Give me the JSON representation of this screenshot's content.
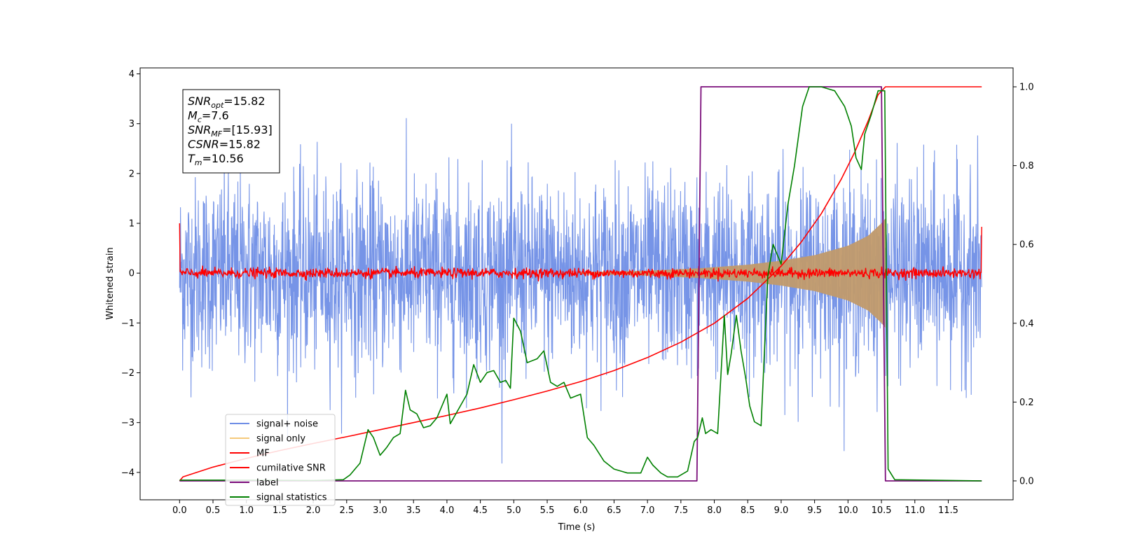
{
  "chart_data": {
    "type": "line",
    "xlabel": "Time (s)",
    "ylabel": "Whitened strain",
    "xlim": [
      -0.59,
      12.47
    ],
    "ylim": [
      -4.55,
      4.12
    ],
    "y2lim": [
      -0.048,
      1.048
    ],
    "grid": false,
    "xticks": [
      0.0,
      0.5,
      1.0,
      1.5,
      2.0,
      2.5,
      3.0,
      3.5,
      4.0,
      4.5,
      5.0,
      5.5,
      6.0,
      6.5,
      7.0,
      7.5,
      8.0,
      8.5,
      9.0,
      9.5,
      10.0,
      10.5,
      11.0,
      11.5
    ],
    "xtick_labels": [
      "0.0",
      "0.5",
      "1.0",
      "1.5",
      "2.0",
      "2.5",
      "3.0",
      "3.5",
      "4.0",
      "4.5",
      "5.0",
      "5.5",
      "6.0",
      "6.5",
      "7.0",
      "7.5",
      "8.0",
      "8.5",
      "9.0",
      "9.5",
      "10.0",
      "10.5",
      "11.0",
      "11.5"
    ],
    "yticks": [
      -4,
      -3,
      -2,
      -1,
      0,
      1,
      2,
      3,
      4
    ],
    "ytick_labels": [
      "−4",
      "−3",
      "−2",
      "−1",
      "0",
      "1",
      "2",
      "3",
      "4"
    ],
    "y2ticks": [
      0.0,
      0.2,
      0.4,
      0.6,
      0.8,
      1.0
    ],
    "y2tick_labels": [
      "0.0",
      "0.2",
      "0.4",
      "0.6",
      "0.8",
      "1.0"
    ],
    "legend": {
      "placement": "lower-left",
      "entries": [
        {
          "label": "signal+ noise",
          "color": "#6f8ee6"
        },
        {
          "label": "signal only",
          "color": "#f5c97a"
        },
        {
          "label": "MF",
          "color": "#ff0000"
        },
        {
          "label": "cumilative SNR",
          "color": "#ff0000"
        },
        {
          "label": "label",
          "color": "#7b0e7b"
        },
        {
          "label": "signal statistics",
          "color": "#008000"
        }
      ]
    },
    "annotation": {
      "lines": [
        {
          "base": "SNR",
          "sub": "opt",
          "value": "=15.82"
        },
        {
          "base": "M",
          "sub": "c",
          "value": "=7.6"
        },
        {
          "base": "SNR",
          "sub": "MF",
          "value": "=[15.93]"
        },
        {
          "base": "CSNR",
          "sub": "",
          "value": "=15.82"
        },
        {
          "base": "T",
          "sub": "m",
          "value": "=10.56"
        }
      ]
    },
    "series": [
      {
        "name": "signal+ noise",
        "axis": "left",
        "color": "#6f8ee6",
        "x_start": 0.0,
        "x_end": 12.0,
        "noise_rms": 0.95,
        "max": 3.65,
        "min": -4.15
      },
      {
        "name": "signal only",
        "axis": "left",
        "color": "#c19a6b",
        "envelope_x": [
          6.0,
          7.0,
          7.8,
          8.5,
          9.0,
          9.5,
          10.0,
          10.3,
          10.5,
          10.56
        ],
        "envelope_amp": [
          0.02,
          0.05,
          0.1,
          0.17,
          0.25,
          0.36,
          0.55,
          0.75,
          1.0,
          1.1
        ]
      },
      {
        "name": "MF",
        "axis": "left",
        "color": "#ff0000",
        "x_start": 0.0,
        "x_end": 12.0,
        "noise_rms": 0.05,
        "start_value": 1.0,
        "end_value": 0.93
      },
      {
        "name": "cumilative SNR",
        "axis": "right",
        "color": "#ff0000",
        "x": [
          0.0,
          0.05,
          0.5,
          1.0,
          1.5,
          2.0,
          2.5,
          3.0,
          3.5,
          4.0,
          4.5,
          5.0,
          5.5,
          6.0,
          6.5,
          7.0,
          7.5,
          8.0,
          8.5,
          9.0,
          9.3,
          9.6,
          9.9,
          10.1,
          10.3,
          10.45,
          10.56,
          10.56,
          12.0
        ],
        "y": [
          0.0,
          0.01,
          0.035,
          0.057,
          0.077,
          0.095,
          0.112,
          0.13,
          0.148,
          0.166,
          0.185,
          0.206,
          0.228,
          0.252,
          0.28,
          0.313,
          0.352,
          0.4,
          0.463,
          0.545,
          0.606,
          0.678,
          0.766,
          0.834,
          0.913,
          0.98,
          1.0,
          1.0,
          1.0
        ]
      },
      {
        "name": "label",
        "axis": "right",
        "color": "#7b0e7b",
        "x": [
          0.0,
          7.74,
          7.8,
          10.5,
          10.56,
          12.0
        ],
        "y": [
          0.0,
          0.0,
          1.0,
          1.0,
          0.0,
          0.0
        ]
      },
      {
        "name": "signal statistics",
        "axis": "right",
        "color": "#008000",
        "x": [
          0.0,
          1.0,
          2.0,
          2.45,
          2.55,
          2.7,
          2.82,
          2.9,
          3.0,
          3.05,
          3.1,
          3.2,
          3.3,
          3.38,
          3.45,
          3.55,
          3.65,
          3.75,
          3.85,
          4.0,
          4.05,
          4.2,
          4.3,
          4.4,
          4.5,
          4.6,
          4.7,
          4.8,
          4.88,
          4.95,
          5.0,
          5.1,
          5.2,
          5.35,
          5.45,
          5.55,
          5.65,
          5.75,
          5.85,
          6.0,
          6.1,
          6.2,
          6.35,
          6.5,
          6.7,
          6.9,
          7.0,
          7.08,
          7.2,
          7.3,
          7.45,
          7.6,
          7.7,
          7.75,
          7.82,
          7.87,
          7.95,
          8.05,
          8.15,
          8.2,
          8.25,
          8.33,
          8.4,
          8.47,
          8.53,
          8.6,
          8.7,
          8.8,
          8.88,
          9.0,
          9.1,
          9.2,
          9.32,
          9.42,
          9.6,
          9.8,
          9.95,
          10.05,
          10.12,
          10.2,
          10.25,
          10.35,
          10.45,
          10.55,
          10.6,
          10.7,
          12.0
        ],
        "y": [
          0.002,
          0.002,
          0.001,
          0.003,
          0.015,
          0.045,
          0.13,
          0.11,
          0.065,
          0.075,
          0.085,
          0.11,
          0.12,
          0.23,
          0.18,
          0.17,
          0.135,
          0.14,
          0.16,
          0.22,
          0.145,
          0.19,
          0.22,
          0.295,
          0.25,
          0.275,
          0.28,
          0.25,
          0.255,
          0.235,
          0.413,
          0.38,
          0.3,
          0.31,
          0.33,
          0.25,
          0.24,
          0.25,
          0.21,
          0.22,
          0.11,
          0.09,
          0.05,
          0.03,
          0.02,
          0.02,
          0.06,
          0.04,
          0.02,
          0.01,
          0.01,
          0.025,
          0.1,
          0.11,
          0.16,
          0.12,
          0.13,
          0.12,
          0.42,
          0.27,
          0.32,
          0.42,
          0.33,
          0.26,
          0.19,
          0.15,
          0.14,
          0.52,
          0.6,
          0.55,
          0.7,
          0.8,
          0.95,
          1.0,
          1.0,
          0.99,
          0.95,
          0.9,
          0.82,
          0.79,
          0.88,
          0.93,
          0.99,
          0.99,
          0.03,
          0.003,
          0.0
        ]
      }
    ]
  }
}
